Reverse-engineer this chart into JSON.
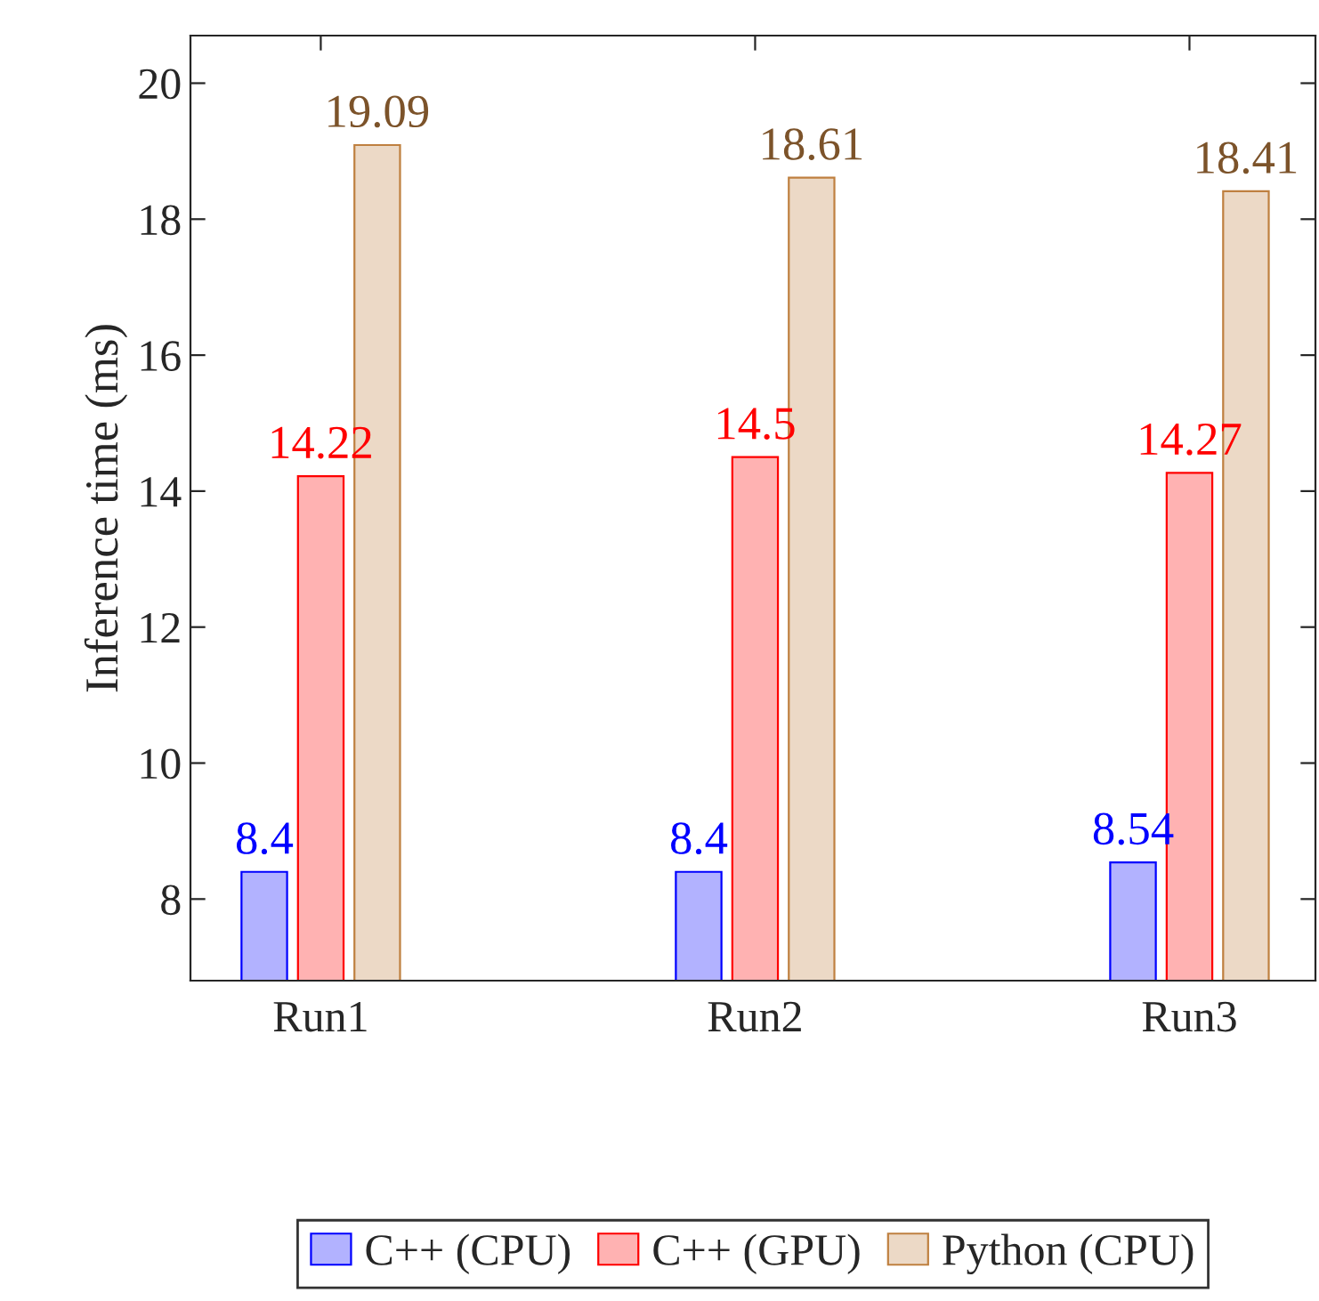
{
  "chart_data": {
    "type": "bar",
    "ylabel": "Inference time (ms)",
    "categories": [
      "Run1",
      "Run2",
      "Run3"
    ],
    "series": [
      {
        "name": "C++ (CPU)",
        "color": "#0000ff",
        "values": [
          8.4,
          8.4,
          8.54
        ]
      },
      {
        "name": "C++ (GPU)",
        "color": "#ff0000",
        "values": [
          14.22,
          14.5,
          14.27
        ]
      },
      {
        "name": "Python (CPU)",
        "color": "#bf8040",
        "values": [
          19.09,
          18.61,
          18.41
        ]
      }
    ],
    "ylim": [
      6.8,
      20.7
    ],
    "yticks": [
      8,
      10,
      12,
      14,
      16,
      18,
      20
    ],
    "data_labels": true,
    "grid": false,
    "legend": "bottom"
  }
}
